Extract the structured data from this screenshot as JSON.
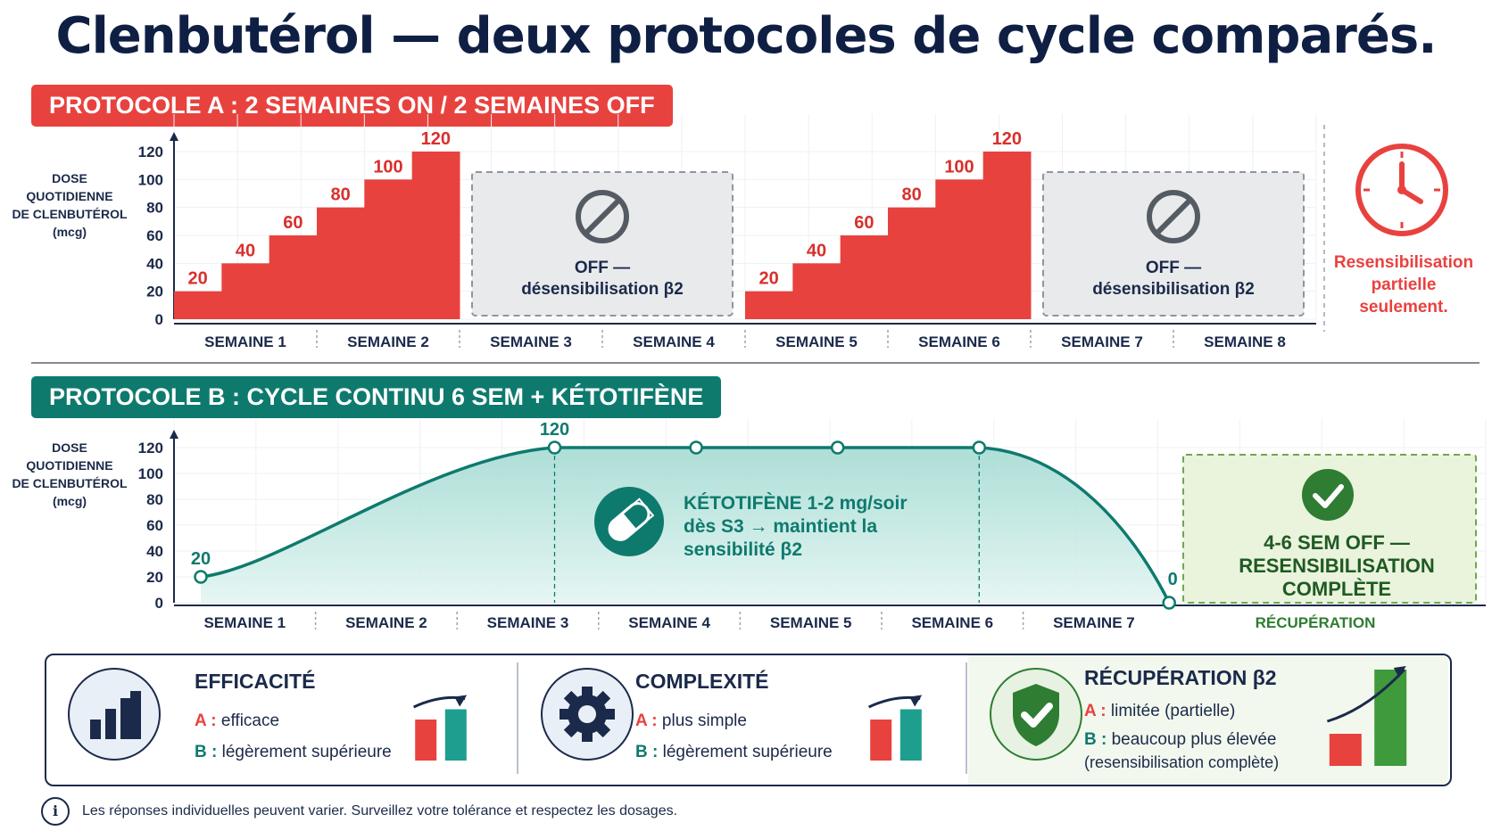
{
  "title": "Clenbutérol — deux protocoles de cycle comparés.",
  "colors": {
    "red": "#e8423f",
    "teal": "#0e7a6e",
    "navy": "#0f1f44",
    "green": "#2e7d32"
  },
  "protocol_a": {
    "banner": "PROTOCOLE A : 2 SEMAINES ON / 2 SEMAINES OFF",
    "ylabel": [
      "DOSE QUOTIDIENNE",
      "DE CLENBUTÉROL",
      "(mcg)"
    ],
    "off_label": [
      "OFF —",
      "désensibilisation β2"
    ],
    "side_note": [
      "Resensibilisation",
      "partielle",
      "seulement."
    ],
    "side_icon": "clock-icon",
    "off_icon": "prohibited-icon"
  },
  "protocol_b": {
    "banner": "PROTOCOLE B : CYCLE CONTINU 6 SEM + KÉTOTIFÈNE",
    "ylabel": [
      "DOSE QUOTIDIENNE",
      "DE CLENBUTÉROL",
      "(mcg)"
    ],
    "ketotifen": [
      "KÉTOTIFÈNE 1-2 mg/soir",
      "dès S3 → maintient la",
      "sensibilité β2"
    ],
    "ketotifen_icon": "pill-icon",
    "recovery": [
      "4-6 SEM OFF —",
      "RESENSIBILISATION",
      "COMPLÈTE"
    ],
    "recovery_label": "RÉCUPÉRATION",
    "recovery_icon": "check-circle-icon"
  },
  "chart_data": [
    {
      "type": "bar",
      "name": "Protocole A",
      "ylim": [
        0,
        120
      ],
      "yticks": [
        0,
        20,
        40,
        60,
        80,
        100,
        120
      ],
      "categories": [
        "SEMAINE 1",
        "SEMAINE 2",
        "SEMAINE 3",
        "SEMAINE 4",
        "SEMAINE 5",
        "SEMAINE 6",
        "SEMAINE 7",
        "SEMAINE 8"
      ],
      "steps": [
        {
          "week": 1,
          "values": [
            20,
            40,
            60
          ]
        },
        {
          "week": 2,
          "values": [
            80,
            100,
            120
          ]
        },
        {
          "week": 3,
          "values": []
        },
        {
          "week": 4,
          "values": []
        },
        {
          "week": 5,
          "values": [
            20,
            40,
            60
          ]
        },
        {
          "week": 6,
          "values": [
            80,
            100,
            120
          ]
        },
        {
          "week": 7,
          "values": []
        },
        {
          "week": 8,
          "values": []
        }
      ],
      "off_weeks": [
        [
          3,
          4
        ],
        [
          7,
          8
        ]
      ]
    },
    {
      "type": "area",
      "name": "Protocole B",
      "ylim": [
        0,
        120
      ],
      "yticks": [
        0,
        20,
        40,
        60,
        80,
        100,
        120
      ],
      "categories": [
        "SEMAINE 1",
        "SEMAINE 2",
        "SEMAINE 3",
        "SEMAINE 4",
        "SEMAINE 5",
        "SEMAINE 6",
        "SEMAINE 7"
      ],
      "points": [
        {
          "week": 0,
          "value": 20,
          "label": "20"
        },
        {
          "week": 2.5,
          "value": 120,
          "label": "120"
        },
        {
          "week": 3.5,
          "value": 120
        },
        {
          "week": 4.5,
          "value": 120
        },
        {
          "week": 5.5,
          "value": 120
        },
        {
          "week": 7,
          "value": 0,
          "label": "0"
        }
      ]
    }
  ],
  "summary": [
    {
      "icon": "bar-chart-icon",
      "title": "EFFICACITÉ",
      "a_key": "A :",
      "a_text": "efficace",
      "b_key": "B :",
      "b_text": "légèrement supérieure",
      "compare": [
        1,
        1.25
      ]
    },
    {
      "icon": "gear-icon",
      "title": "COMPLEXITÉ",
      "a_key": "A :",
      "a_text": "plus simple",
      "b_key": "B :",
      "b_text": "légèrement supérieure",
      "compare": [
        1,
        1.25
      ]
    },
    {
      "icon": "shield-check-icon",
      "title": "RÉCUPÉRATION β2",
      "a_key": "A :",
      "a_text": "limitée (partielle)",
      "b_key": "B :",
      "b_text": "beaucoup plus élevée",
      "b_text2": "(resensibilisation complète)",
      "compare": [
        1,
        3
      ]
    }
  ],
  "footnote": "Les réponses individuelles peuvent varier. Surveillez votre tolérance et respectez les dosages.",
  "footnote_icon": "info-icon"
}
